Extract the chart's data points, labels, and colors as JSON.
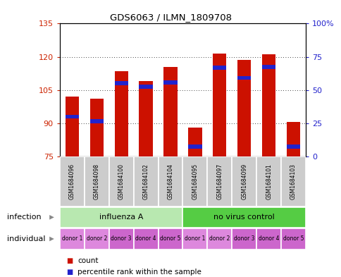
{
  "title": "GDS6063 / ILMN_1809708",
  "samples": [
    "GSM1684096",
    "GSM1684098",
    "GSM1684100",
    "GSM1684102",
    "GSM1684104",
    "GSM1684095",
    "GSM1684097",
    "GSM1684099",
    "GSM1684101",
    "GSM1684103"
  ],
  "counts": [
    102.0,
    101.0,
    113.5,
    109.0,
    115.5,
    88.0,
    121.5,
    118.5,
    121.0,
    90.5
  ],
  "percentile_values": [
    93.0,
    91.0,
    108.0,
    106.5,
    108.5,
    79.5,
    115.0,
    110.5,
    115.5,
    79.5
  ],
  "y_min": 75,
  "y_max": 135,
  "y_ticks": [
    75,
    90,
    105,
    120,
    135
  ],
  "right_y_ticks_pct": [
    0,
    25,
    50,
    75,
    100
  ],
  "right_y_labels": [
    "0",
    "25",
    "50",
    "75",
    "100%"
  ],
  "infection_groups": [
    {
      "label": "influenza A",
      "start": 0,
      "end": 5,
      "color": "#b8e8b0"
    },
    {
      "label": "no virus control",
      "start": 5,
      "end": 10,
      "color": "#55cc44"
    }
  ],
  "individual_labels": [
    "donor 1",
    "donor 2",
    "donor 3",
    "donor 4",
    "donor 5",
    "donor 1",
    "donor 2",
    "donor 3",
    "donor 4",
    "donor 5"
  ],
  "individual_color_alt": "#dd88dd",
  "individual_color_main": "#cc66cc",
  "bar_color": "#cc1100",
  "percentile_color": "#2222cc",
  "bar_width": 0.55,
  "background_color": "#ffffff",
  "sample_bg_color": "#cccccc",
  "legend_count_color": "#cc1100",
  "legend_pct_color": "#2222cc"
}
